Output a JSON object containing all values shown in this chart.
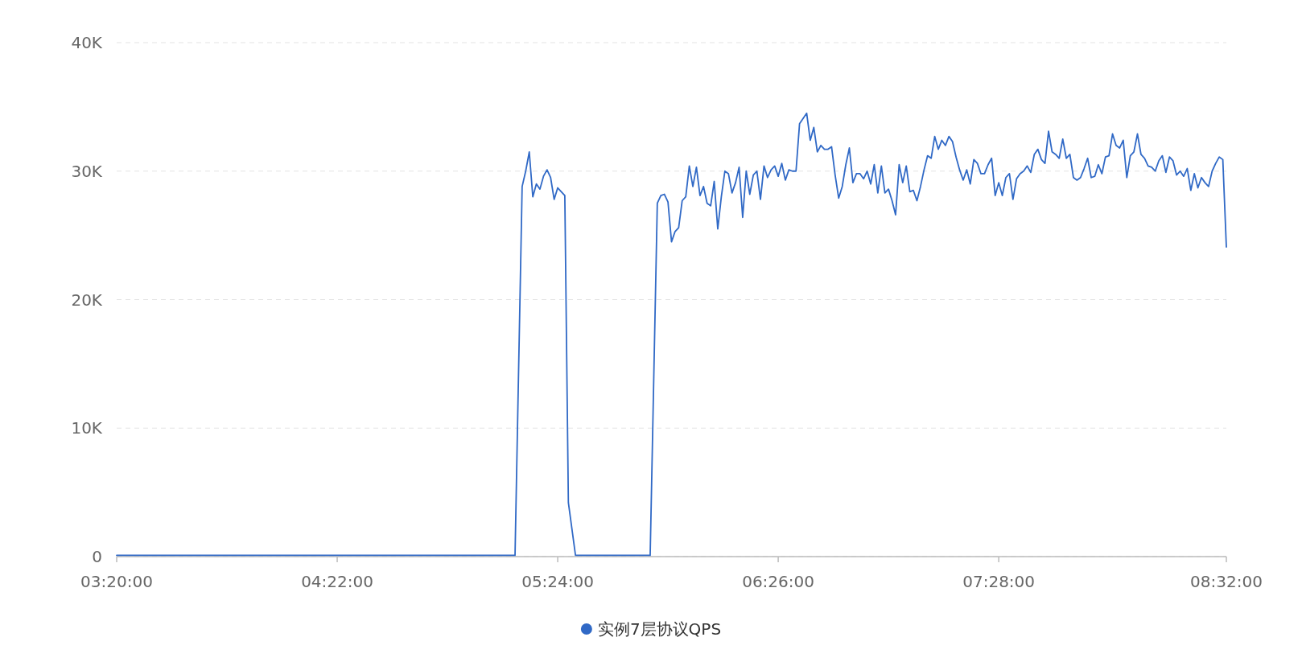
{
  "chart_data": {
    "type": "line",
    "xlim": [
      3.3333,
      8.5333
    ],
    "xticks": [
      {
        "value": 3.3333,
        "label": "03:20:00"
      },
      {
        "value": 4.3667,
        "label": "04:22:00"
      },
      {
        "value": 5.4,
        "label": "05:24:00"
      },
      {
        "value": 6.4333,
        "label": "06:26:00"
      },
      {
        "value": 7.4667,
        "label": "07:28:00"
      },
      {
        "value": 8.5333,
        "label": "08:32:00"
      }
    ],
    "ylim": [
      0,
      40000
    ],
    "yticks": [
      0,
      {
        "value": 10000,
        "label": "10K"
      },
      {
        "value": 20000,
        "label": "20K"
      },
      {
        "value": 30000,
        "label": "30K"
      },
      {
        "value": 40000,
        "label": "40K"
      }
    ],
    "grid": "y",
    "legend": "bottom",
    "series": [
      {
        "name": "实例7层协议QPS",
        "color": "#3069c6",
        "x": [
          3.3333,
          5.2,
          5.2333,
          5.25,
          5.2667,
          5.2833,
          5.3,
          5.3167,
          5.3333,
          5.35,
          5.3667,
          5.3833,
          5.4,
          5.4167,
          5.4333,
          5.45,
          5.4833,
          5.8333,
          5.8667,
          5.8833,
          5.9,
          5.9167,
          5.9333,
          5.95,
          5.9667,
          5.9833,
          6,
          6.0167,
          6.0333,
          6.05,
          6.0667,
          6.0833,
          6.1,
          6.1167,
          6.1333,
          6.15,
          6.1667,
          6.1833,
          6.2,
          6.2167,
          6.2333,
          6.25,
          6.2667,
          6.2833,
          6.3,
          6.3167,
          6.3333,
          6.35,
          6.3667,
          6.3833,
          6.4,
          6.4167,
          6.4333,
          6.45,
          6.4667,
          6.4833,
          6.5,
          6.5167,
          6.5333,
          6.55,
          6.5667,
          6.5833,
          6.6,
          6.6167,
          6.6333,
          6.65,
          6.6667,
          6.6833,
          6.7,
          6.7167,
          6.7333,
          6.75,
          6.7667,
          6.7833,
          6.8,
          6.8167,
          6.8333,
          6.85,
          6.8667,
          6.8833,
          6.9,
          6.9167,
          6.9333,
          6.95,
          6.9667,
          6.9833,
          7,
          7.0167,
          7.0333,
          7.05,
          7.0667,
          7.0833,
          7.1,
          7.1167,
          7.1333,
          7.15,
          7.1667,
          7.1833,
          7.2,
          7.2167,
          7.2333,
          7.25,
          7.2667,
          7.2833,
          7.3,
          7.3167,
          7.3333,
          7.35,
          7.3667,
          7.3833,
          7.4,
          7.4167,
          7.4333,
          7.45,
          7.4667,
          7.4833,
          7.5,
          7.5167,
          7.5333,
          7.55,
          7.5667,
          7.5833,
          7.6,
          7.6167,
          7.6333,
          7.65,
          7.6667,
          7.6833,
          7.7,
          7.7167,
          7.7333,
          7.75,
          7.7667,
          7.7833,
          7.8,
          7.8167,
          7.8333,
          7.85,
          7.8667,
          7.8833,
          7.9,
          7.9167,
          7.9333,
          7.95,
          7.9667,
          7.9833,
          8,
          8.0167,
          8.0333,
          8.05,
          8.0667,
          8.0833,
          8.1,
          8.1167,
          8.1333,
          8.15,
          8.1667,
          8.1833,
          8.2,
          8.2167,
          8.2333,
          8.25,
          8.2667,
          8.2833,
          8.3,
          8.3167,
          8.3333,
          8.35,
          8.3667,
          8.3833,
          8.4,
          8.4167,
          8.4333,
          8.45,
          8.4667,
          8.4833,
          8.5,
          8.5167,
          8.5333
        ],
        "values": [
          100,
          100,
          28800,
          30000,
          31500,
          28000,
          29000,
          28600,
          29600,
          30100,
          29500,
          27800,
          28700,
          28400,
          28100,
          4200,
          100,
          100,
          27500,
          28100,
          28200,
          27600,
          24500,
          25300,
          25600,
          27700,
          28000,
          30400,
          28800,
          30300,
          28100,
          28800,
          27500,
          27300,
          29200,
          25500,
          28000,
          30000,
          29800,
          28300,
          29100,
          30300,
          26400,
          30000,
          28200,
          29700,
          30000,
          27800,
          30400,
          29500,
          30100,
          30400,
          29600,
          30600,
          29300,
          30100,
          30000,
          30000,
          33700,
          34100,
          34500,
          32400,
          33400,
          31500,
          32000,
          31700,
          31700,
          31900,
          29700,
          27900,
          28800,
          30500,
          31800,
          29100,
          29800,
          29800,
          29400,
          30000,
          29000,
          30500,
          28300,
          30400,
          28300,
          28600,
          27700,
          26600,
          30500,
          29100,
          30400,
          28400,
          28500,
          27700,
          28800,
          30100,
          31200,
          31000,
          32700,
          31700,
          32400,
          32000,
          32700,
          32300,
          31100,
          30100,
          29300,
          30100,
          29000,
          30900,
          30600,
          29800,
          29800,
          30500,
          31000,
          28100,
          29100,
          28100,
          29500,
          29800,
          27800,
          29400,
          29800,
          30000,
          30400,
          29900,
          31300,
          31700,
          30900,
          30600,
          33100,
          31500,
          31300,
          31000,
          32500,
          31000,
          31300,
          29500,
          29300,
          29500,
          30200,
          31000,
          29500,
          29600,
          30500,
          29800,
          31100,
          31200,
          32900,
          32000,
          31800,
          32400,
          29500,
          31200,
          31500,
          32900,
          31300,
          31000,
          30400,
          30300,
          30000,
          30800,
          31200,
          29900,
          31100,
          30800,
          29700,
          30000,
          29600,
          30200,
          28500,
          29800,
          28700,
          29500,
          29100,
          28800,
          30000,
          30600,
          31100,
          30900,
          24100
        ]
      }
    ]
  }
}
